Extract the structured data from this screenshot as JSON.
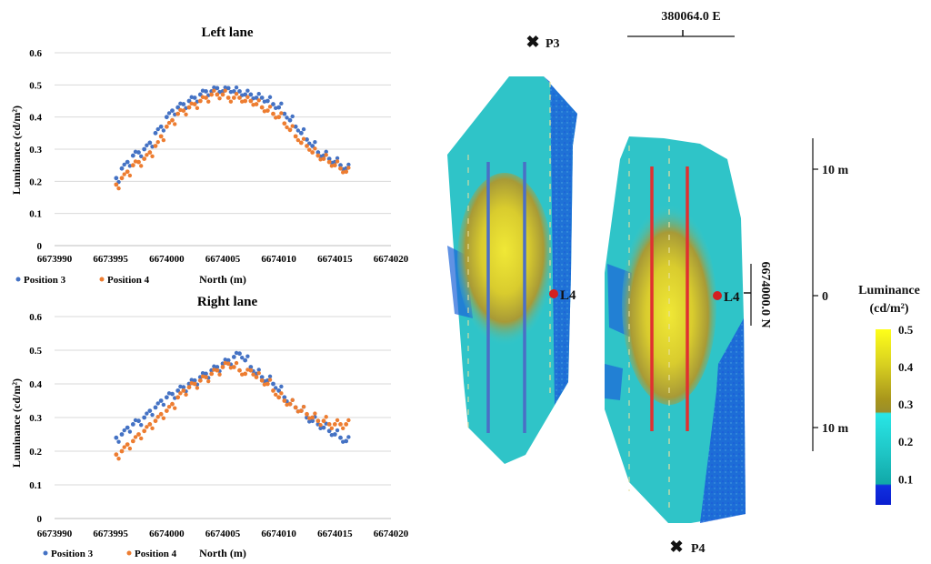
{
  "colors": {
    "position3": "#4472C4",
    "position4": "#ED7D31",
    "grid": "#D9D9D9",
    "lane_left_line": "#4A6FC6",
    "lane_right_line": "#E03030",
    "luminaire_marker": "#D42020"
  },
  "chart_data": [
    {
      "type": "scatter",
      "title": "Left lane",
      "xlabel": "North (m)",
      "ylabel": "Luminance (cd/m²)",
      "xlim": [
        6673990,
        6674020
      ],
      "ylim": [
        0,
        0.6
      ],
      "xticks": [
        "6673990",
        "6673995",
        "6674000",
        "6674005",
        "6674010",
        "6674015",
        "6674020"
      ],
      "yticks": [
        "0",
        "0.1",
        "0.2",
        "0.3",
        "0.4",
        "0.5",
        "0.6"
      ],
      "grid": true,
      "legend": "bottom-left",
      "series": [
        {
          "name": "Position 3",
          "x": [
            6673995.5,
            6673996,
            6673996.5,
            6673997,
            6673997.5,
            6673998,
            6673998.5,
            6673999,
            6673999.5,
            6674000,
            6674000.5,
            6674001,
            6674001.5,
            6674002,
            6674002.5,
            6674003,
            6674003.5,
            6674004,
            6674004.5,
            6674005,
            6674005.5,
            6674006,
            6674006.5,
            6674007,
            6674007.5,
            6674008,
            6674008.5,
            6674009,
            6674009.5,
            6674010,
            6674010.5,
            6674011,
            6674011.5,
            6674012,
            6674012.5,
            6674013,
            6674013.5,
            6674014,
            6674014.5,
            6674015,
            6674015.5,
            6674016
          ],
          "y": [
            0.21,
            0.24,
            0.26,
            0.28,
            0.29,
            0.3,
            0.32,
            0.35,
            0.37,
            0.4,
            0.42,
            0.43,
            0.44,
            0.45,
            0.46,
            0.47,
            0.48,
            0.48,
            0.49,
            0.48,
            0.49,
            0.48,
            0.48,
            0.47,
            0.47,
            0.46,
            0.46,
            0.45,
            0.44,
            0.43,
            0.41,
            0.39,
            0.37,
            0.35,
            0.33,
            0.31,
            0.29,
            0.28,
            0.27,
            0.26,
            0.25,
            0.24
          ]
        },
        {
          "name": "Position 4",
          "x": [
            6673995.5,
            6673996,
            6673996.5,
            6673997,
            6673997.5,
            6673998,
            6673998.5,
            6673999,
            6673999.5,
            6674000,
            6674000.5,
            6674001,
            6674001.5,
            6674002,
            6674002.5,
            6674003,
            6674003.5,
            6674004,
            6674004.5,
            6674005,
            6674005.5,
            6674006,
            6674006.5,
            6674007,
            6674007.5,
            6674008,
            6674008.5,
            6674009,
            6674009.5,
            6674010,
            6674010.5,
            6674011,
            6674011.5,
            6674012,
            6674012.5,
            6674013,
            6674013.5,
            6674014,
            6674014.5,
            6674015,
            6674015.5,
            6674016
          ],
          "y": [
            0.19,
            0.21,
            0.23,
            0.25,
            0.26,
            0.27,
            0.29,
            0.31,
            0.34,
            0.37,
            0.39,
            0.41,
            0.42,
            0.43,
            0.44,
            0.45,
            0.46,
            0.47,
            0.47,
            0.47,
            0.46,
            0.46,
            0.46,
            0.45,
            0.45,
            0.44,
            0.43,
            0.42,
            0.41,
            0.4,
            0.38,
            0.36,
            0.34,
            0.32,
            0.31,
            0.29,
            0.28,
            0.27,
            0.26,
            0.25,
            0.24,
            0.23
          ]
        }
      ]
    },
    {
      "type": "scatter",
      "title": "Right lane",
      "xlabel": "North (m)",
      "ylabel": "Luminance (cd/m²)",
      "xlim": [
        6673990,
        6674020
      ],
      "ylim": [
        0,
        0.6
      ],
      "xticks": [
        "6673990",
        "6673995",
        "6674000",
        "6674005",
        "6674010",
        "6674015",
        "6674020"
      ],
      "yticks": [
        "0",
        "0.1",
        "0.2",
        "0.3",
        "0.4",
        "0.5",
        "0.6"
      ],
      "grid": true,
      "legend": "bottom-left",
      "series": [
        {
          "name": "Position 3",
          "x": [
            6673995.5,
            6673996,
            6673996.5,
            6673997,
            6673997.5,
            6673998,
            6673998.5,
            6673999,
            6673999.5,
            6674000,
            6674000.5,
            6674001,
            6674001.5,
            6674002,
            6674002.5,
            6674003,
            6674003.5,
            6674004,
            6674004.5,
            6674005,
            6674005.5,
            6674006,
            6674006.5,
            6674007,
            6674007.5,
            6674008,
            6674008.5,
            6674009,
            6674009.5,
            6674010,
            6674010.5,
            6674011,
            6674011.5,
            6674012,
            6674012.5,
            6674013,
            6674013.5,
            6674014,
            6674014.5,
            6674015,
            6674015.5,
            6674016
          ],
          "y": [
            0.24,
            0.25,
            0.27,
            0.28,
            0.29,
            0.3,
            0.32,
            0.33,
            0.35,
            0.36,
            0.37,
            0.38,
            0.39,
            0.4,
            0.41,
            0.42,
            0.43,
            0.44,
            0.45,
            0.46,
            0.47,
            0.48,
            0.49,
            0.47,
            0.45,
            0.43,
            0.42,
            0.41,
            0.4,
            0.38,
            0.36,
            0.34,
            0.33,
            0.32,
            0.3,
            0.29,
            0.28,
            0.27,
            0.26,
            0.25,
            0.24,
            0.23
          ]
        },
        {
          "name": "Position 4",
          "x": [
            6673995.5,
            6673996,
            6673996.5,
            6673997,
            6673997.5,
            6673998,
            6673998.5,
            6673999,
            6673999.5,
            6674000,
            6674000.5,
            6674001,
            6674001.5,
            6674002,
            6674002.5,
            6674003,
            6674003.5,
            6674004,
            6674004.5,
            6674005,
            6674005.5,
            6674006,
            6674006.5,
            6674007,
            6674007.5,
            6674008,
            6674008.5,
            6674009,
            6674009.5,
            6674010,
            6674010.5,
            6674011,
            6674011.5,
            6674012,
            6674012.5,
            6674013,
            6674013.5,
            6674014,
            6674014.5,
            6674015,
            6674015.5,
            6674016
          ],
          "y": [
            0.19,
            0.2,
            0.22,
            0.23,
            0.25,
            0.26,
            0.28,
            0.29,
            0.31,
            0.32,
            0.34,
            0.36,
            0.38,
            0.39,
            0.4,
            0.41,
            0.42,
            0.43,
            0.44,
            0.45,
            0.46,
            0.45,
            0.44,
            0.43,
            0.44,
            0.42,
            0.41,
            0.4,
            0.38,
            0.36,
            0.35,
            0.34,
            0.33,
            0.32,
            0.31,
            0.3,
            0.29,
            0.29,
            0.28,
            0.28,
            0.28,
            0.28
          ]
        }
      ]
    }
  ],
  "map": {
    "easting_label": "380064.0 E",
    "northing_label": "6674000.0 N",
    "scale_ticks": [
      "10 m",
      "0",
      "10 m"
    ],
    "points": [
      {
        "label": "P3"
      },
      {
        "label": "P4"
      },
      {
        "label": "L4"
      },
      {
        "label": "L4"
      }
    ],
    "legend": {
      "title_line1": "Luminance",
      "title_line2": "(cd/m²)",
      "ticks": [
        "0.5",
        "0.4",
        "0.3",
        "0.2",
        "0.1"
      ],
      "min": 0.03,
      "max": 0.5
    }
  }
}
